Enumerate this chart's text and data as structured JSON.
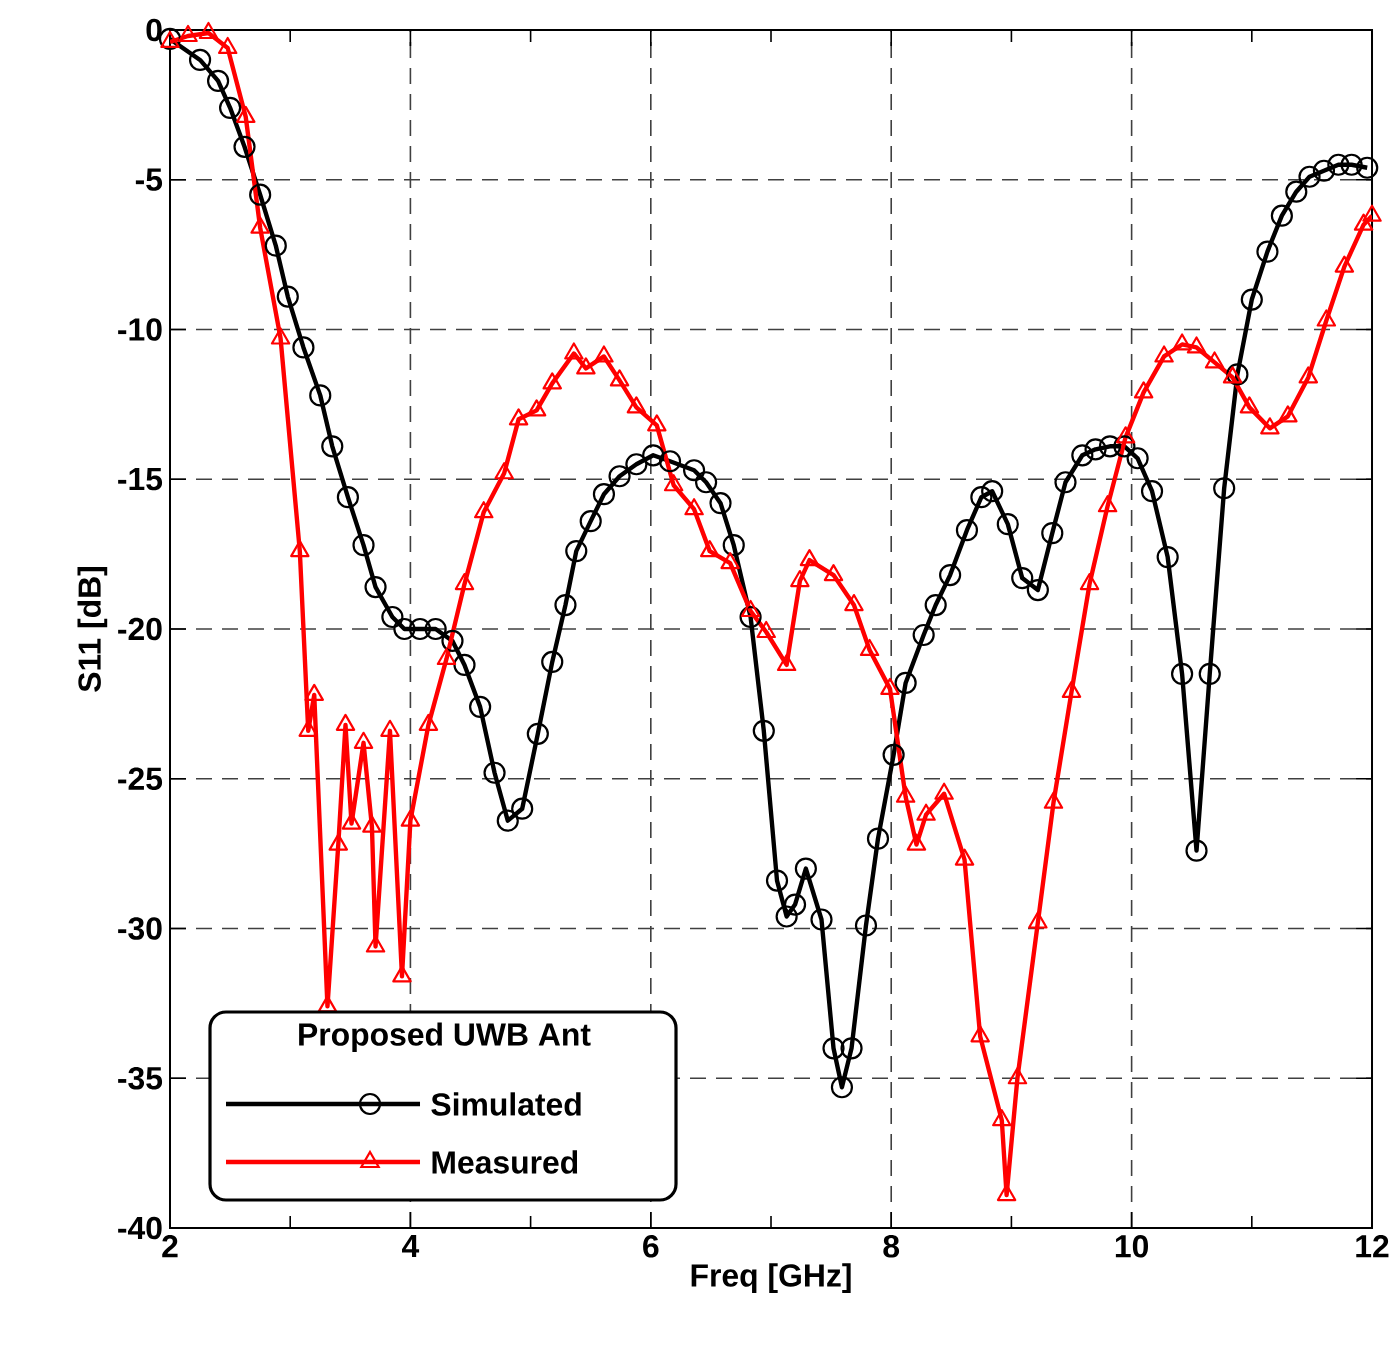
{
  "chart_data": {
    "type": "line",
    "xlabel": "Freq [GHz]",
    "ylabel": "S11 [dB]",
    "legend_title": "Proposed UWB Ant",
    "xlim": [
      2,
      12
    ],
    "ylim": [
      -40,
      0
    ],
    "xticks": [
      2,
      4,
      6,
      8,
      10,
      12
    ],
    "yticks": [
      -40,
      -35,
      -30,
      -25,
      -20,
      -15,
      -10,
      -5,
      0
    ],
    "grid": true,
    "legend": "bottom left",
    "line_style": "solid",
    "series": [
      {
        "name": "Simulated",
        "color": "#000000",
        "marker": "circle",
        "x": [
          2.0,
          2.25,
          2.4,
          2.5,
          2.62,
          2.75,
          2.88,
          2.98,
          3.11,
          3.25,
          3.35,
          3.48,
          3.61,
          3.71,
          3.85,
          3.95,
          4.08,
          4.21,
          4.35,
          4.45,
          4.58,
          4.7,
          4.81,
          4.93,
          5.06,
          5.18,
          5.29,
          5.38,
          5.5,
          5.61,
          5.74,
          5.88,
          6.02,
          6.16,
          6.36,
          6.46,
          6.58,
          6.69,
          6.83,
          6.94,
          7.05,
          7.13,
          7.2,
          7.29,
          7.42,
          7.52,
          7.59,
          7.67,
          7.79,
          7.89,
          8.02,
          8.12,
          8.27,
          8.37,
          8.49,
          8.63,
          8.75,
          8.84,
          8.97,
          9.09,
          9.22,
          9.34,
          9.45,
          9.59,
          9.7,
          9.82,
          9.94,
          10.05,
          10.17,
          10.3,
          10.42,
          10.54,
          10.65,
          10.77,
          10.88,
          11.0,
          11.13,
          11.25,
          11.37,
          11.48,
          11.6,
          11.72,
          11.83,
          11.96
        ],
        "values": [
          -0.3,
          -1.0,
          -1.7,
          -2.6,
          -3.9,
          -5.5,
          -7.2,
          -8.9,
          -10.6,
          -12.2,
          -13.9,
          -15.6,
          -17.2,
          -18.6,
          -19.6,
          -20.0,
          -20.0,
          -20.0,
          -20.4,
          -21.2,
          -22.6,
          -24.8,
          -26.4,
          -26.0,
          -23.5,
          -21.1,
          -19.2,
          -17.4,
          -16.4,
          -15.5,
          -14.9,
          -14.5,
          -14.2,
          -14.4,
          -14.7,
          -15.1,
          -15.8,
          -17.2,
          -19.6,
          -23.4,
          -28.4,
          -29.6,
          -29.2,
          -28.0,
          -29.7,
          -34.0,
          -35.3,
          -34.0,
          -29.9,
          -27.0,
          -24.2,
          -21.8,
          -20.2,
          -19.2,
          -18.2,
          -16.7,
          -15.6,
          -15.4,
          -16.5,
          -18.3,
          -18.7,
          -16.8,
          -15.1,
          -14.2,
          -14.0,
          -13.9,
          -13.9,
          -14.3,
          -15.4,
          -17.6,
          -21.5,
          -27.4,
          -21.5,
          -15.3,
          -11.5,
          -9.0,
          -7.4,
          -6.2,
          -5.4,
          -4.9,
          -4.7,
          -4.5,
          -4.5,
          -4.6
        ]
      },
      {
        "name": "Measured",
        "color": "#ff0000",
        "marker": "triangle",
        "x": [
          2.0,
          2.15,
          2.32,
          2.48,
          2.63,
          2.75,
          2.92,
          3.08,
          3.15,
          3.2,
          3.31,
          3.4,
          3.46,
          3.51,
          3.61,
          3.68,
          3.71,
          3.83,
          3.93,
          4.0,
          4.15,
          4.3,
          4.45,
          4.61,
          4.78,
          4.9,
          5.05,
          5.18,
          5.36,
          5.46,
          5.61,
          5.74,
          5.88,
          6.05,
          6.19,
          6.36,
          6.49,
          6.66,
          6.83,
          6.96,
          7.13,
          7.24,
          7.32,
          7.52,
          7.69,
          7.82,
          7.99,
          8.12,
          8.21,
          8.29,
          8.44,
          8.61,
          8.74,
          8.92,
          8.96,
          9.05,
          9.22,
          9.35,
          9.5,
          9.65,
          9.8,
          9.95,
          10.1,
          10.27,
          10.42,
          10.54,
          10.69,
          10.84,
          10.98,
          11.15,
          11.3,
          11.47,
          11.62,
          11.77,
          11.93,
          12.0
        ],
        "values": [
          -0.4,
          -0.2,
          -0.1,
          -0.6,
          -2.9,
          -6.6,
          -10.3,
          -17.4,
          -23.4,
          -22.2,
          -32.6,
          -27.2,
          -23.2,
          -26.5,
          -23.8,
          -26.6,
          -30.6,
          -23.4,
          -31.6,
          -26.4,
          -23.2,
          -21.0,
          -18.5,
          -16.1,
          -14.8,
          -13.0,
          -12.7,
          -11.8,
          -10.8,
          -11.3,
          -10.9,
          -11.7,
          -12.6,
          -13.2,
          -15.2,
          -16.0,
          -17.4,
          -17.8,
          -19.4,
          -20.1,
          -21.2,
          -18.4,
          -17.7,
          -18.2,
          -19.2,
          -20.7,
          -22.0,
          -25.6,
          -27.2,
          -26.2,
          -25.5,
          -27.7,
          -33.6,
          -36.4,
          -38.9,
          -35.0,
          -29.8,
          -25.8,
          -22.1,
          -18.5,
          -15.9,
          -13.6,
          -12.1,
          -10.9,
          -10.5,
          -10.6,
          -11.1,
          -11.6,
          -12.6,
          -13.3,
          -12.9,
          -11.6,
          -9.7,
          -7.9,
          -6.5,
          -6.2
        ]
      }
    ]
  }
}
